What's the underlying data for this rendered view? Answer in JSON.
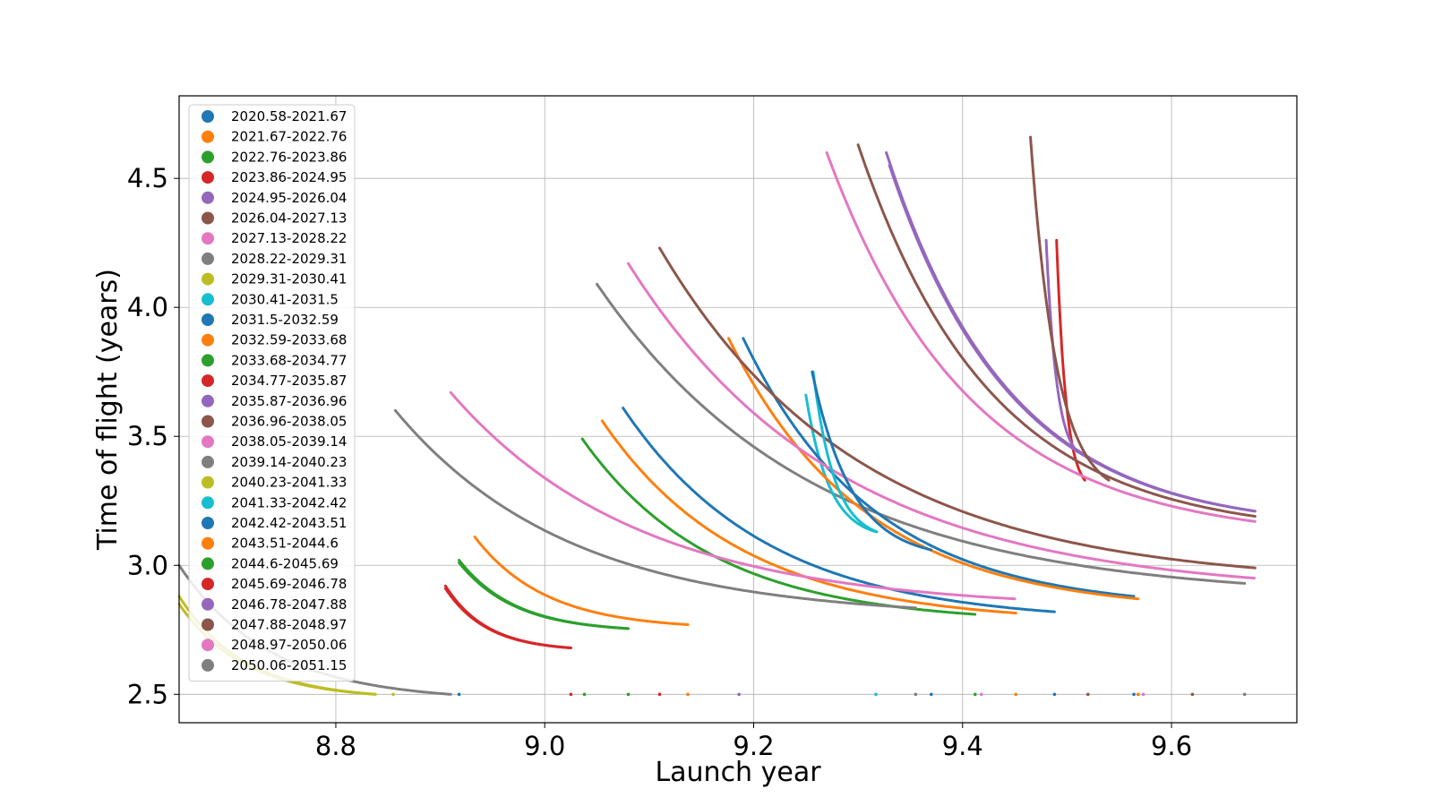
{
  "chart_data": {
    "type": "scatter",
    "xlabel": "Launch year",
    "ylabel": "Time of flight (years)",
    "xlim": [
      8.65,
      9.72
    ],
    "ylim": [
      2.39,
      4.82
    ],
    "x_ticks": [
      "8.8",
      "9.0",
      "9.2",
      "9.4",
      "9.6"
    ],
    "x_tick_values": [
      8.8,
      9.0,
      9.2,
      9.4,
      9.6
    ],
    "y_ticks": [
      "2.5",
      "3.0",
      "3.5",
      "4.0",
      "4.5"
    ],
    "y_tick_values": [
      2.5,
      3.0,
      3.5,
      4.0,
      4.5
    ],
    "grid": true,
    "legend_position": "upper-left",
    "series": [
      {
        "name": "2020.58-2021.67",
        "color": "#1f77b4",
        "x0": 9.075,
        "x1": 9.488,
        "ytop": 3.61,
        "yend": 2.82
      },
      {
        "name": "2021.67-2022.76",
        "color": "#ff7f0e",
        "x0": 9.055,
        "x1": 9.451,
        "ytop": 3.56,
        "yend": 2.815
      },
      {
        "name": "2022.76-2023.86",
        "color": "#2ca02c",
        "x0": 9.036,
        "x1": 9.412,
        "ytop": 3.49,
        "yend": 2.81
      },
      {
        "name": "2023.86-2024.95",
        "color": "#d62728",
        "x0": 9.49,
        "x1": 9.517,
        "ytop": 4.26,
        "yend": 3.33
      },
      {
        "name": "2024.95-2026.04",
        "color": "#9467bd",
        "x0": 9.327,
        "x1": 9.68,
        "ytop": 4.6,
        "yend": 3.21
      },
      {
        "name": "2026.04-2027.13",
        "color": "#8c564b",
        "x0": 9.3,
        "x1": 9.68,
        "ytop": 4.63,
        "yend": 3.19
      },
      {
        "name": "2027.13-2028.22",
        "color": "#e377c2",
        "x0": 9.27,
        "x1": 9.68,
        "ytop": 4.6,
        "yend": 3.17
      },
      {
        "name": "2028.22-2029.31",
        "color": "#7f7f7f",
        "x0": 9.05,
        "x1": 9.67,
        "ytop": 4.09,
        "yend": 2.93
      },
      {
        "name": "2029.31-2030.41",
        "color": "#bcbd22",
        "x0": 8.65,
        "x1": 8.838,
        "ytop": 2.88,
        "yend": 2.5
      },
      {
        "name": "2030.41-2031.5",
        "color": "#17becf",
        "x0": 9.25,
        "x1": 9.317,
        "ytop": 3.66,
        "yend": 3.13
      },
      {
        "name": "2031.5-2032.59",
        "color": "#1f77b4",
        "x0": 9.19,
        "x1": 9.564,
        "ytop": 3.88,
        "yend": 2.88
      },
      {
        "name": "2032.59-2033.68",
        "color": "#ff7f0e",
        "x0": 9.176,
        "x1": 9.568,
        "ytop": 3.88,
        "yend": 2.87
      },
      {
        "name": "2033.68-2034.77",
        "color": "#2ca02c",
        "x0": 8.918,
        "x1": 9.08,
        "ytop": 3.02,
        "yend": 2.755
      },
      {
        "name": "2034.77-2035.87",
        "color": "#d62728",
        "x0": 8.905,
        "x1": 9.025,
        "ytop": 2.92,
        "yend": 2.68
      },
      {
        "name": "2035.87-2036.96",
        "color": "#9467bd",
        "x0": 9.48,
        "x1": 9.51,
        "ytop": 4.26,
        "yend": 3.44
      },
      {
        "name": "2036.96-2038.05",
        "color": "#8c564b",
        "x0": 9.11,
        "x1": 9.68,
        "ytop": 4.23,
        "yend": 2.99
      },
      {
        "name": "2038.05-2039.14",
        "color": "#e377c2",
        "x0": 9.08,
        "x1": 9.68,
        "ytop": 4.17,
        "yend": 2.95
      },
      {
        "name": "2039.14-2040.23",
        "color": "#7f7f7f",
        "x0": 8.857,
        "x1": 9.355,
        "ytop": 3.6,
        "yend": 2.835
      },
      {
        "name": "2040.23-2041.33",
        "color": "#bcbd22",
        "x0": 8.65,
        "x1": 8.838,
        "ytop": 2.85,
        "yend": 2.5
      },
      {
        "name": "2041.33-2042.42",
        "color": "#17becf",
        "x0": 9.257,
        "x1": 9.318,
        "ytop": 3.75,
        "yend": 3.13
      },
      {
        "name": "2042.42-2043.51",
        "color": "#1f77b4",
        "x0": 9.256,
        "x1": 9.37,
        "ytop": 3.75,
        "yend": 3.06
      },
      {
        "name": "2043.51-2044.6",
        "color": "#ff7f0e",
        "x0": 8.933,
        "x1": 9.137,
        "ytop": 3.11,
        "yend": 2.77
      },
      {
        "name": "2044.6-2045.69",
        "color": "#2ca02c",
        "x0": 8.918,
        "x1": 9.08,
        "ytop": 3.01,
        "yend": 2.755
      },
      {
        "name": "2045.69-2046.78",
        "color": "#d62728",
        "x0": 8.905,
        "x1": 9.025,
        "ytop": 2.91,
        "yend": 2.68
      },
      {
        "name": "2046.78-2047.88",
        "color": "#9467bd",
        "x0": 9.33,
        "x1": 9.68,
        "ytop": 4.55,
        "yend": 3.21
      },
      {
        "name": "2047.88-2048.97",
        "color": "#8c564b",
        "x0": 9.465,
        "x1": 9.54,
        "ytop": 4.66,
        "yend": 3.33
      },
      {
        "name": "2048.97-2050.06",
        "color": "#e377c2",
        "x0": 8.91,
        "x1": 9.45,
        "ytop": 3.67,
        "yend": 2.87
      },
      {
        "name": "2050.06-2051.15",
        "color": "#7f7f7f",
        "x0": 8.65,
        "x1": 8.91,
        "ytop": 3.0,
        "yend": 2.5
      }
    ],
    "bottom_markers": [
      {
        "x": 8.855,
        "color": "#bcbd22"
      },
      {
        "x": 8.918,
        "color": "#1f77b4"
      },
      {
        "x": 9.025,
        "color": "#d62728"
      },
      {
        "x": 9.038,
        "color": "#2ca02c"
      },
      {
        "x": 9.08,
        "color": "#2ca02c"
      },
      {
        "x": 9.11,
        "color": "#d62728"
      },
      {
        "x": 9.137,
        "color": "#ff7f0e"
      },
      {
        "x": 9.186,
        "color": "#9467bd"
      },
      {
        "x": 9.317,
        "color": "#17becf"
      },
      {
        "x": 9.355,
        "color": "#7f7f7f"
      },
      {
        "x": 9.37,
        "color": "#1f77b4"
      },
      {
        "x": 9.412,
        "color": "#2ca02c"
      },
      {
        "x": 9.418,
        "color": "#e377c2"
      },
      {
        "x": 9.451,
        "color": "#ff7f0e"
      },
      {
        "x": 9.488,
        "color": "#1f77b4"
      },
      {
        "x": 9.52,
        "color": "#8c564b"
      },
      {
        "x": 9.564,
        "color": "#1f77b4"
      },
      {
        "x": 9.568,
        "color": "#ff7f0e"
      },
      {
        "x": 9.573,
        "color": "#e377c2"
      },
      {
        "x": 9.62,
        "color": "#8c564b"
      },
      {
        "x": 9.67,
        "color": "#7f7f7f"
      }
    ]
  }
}
